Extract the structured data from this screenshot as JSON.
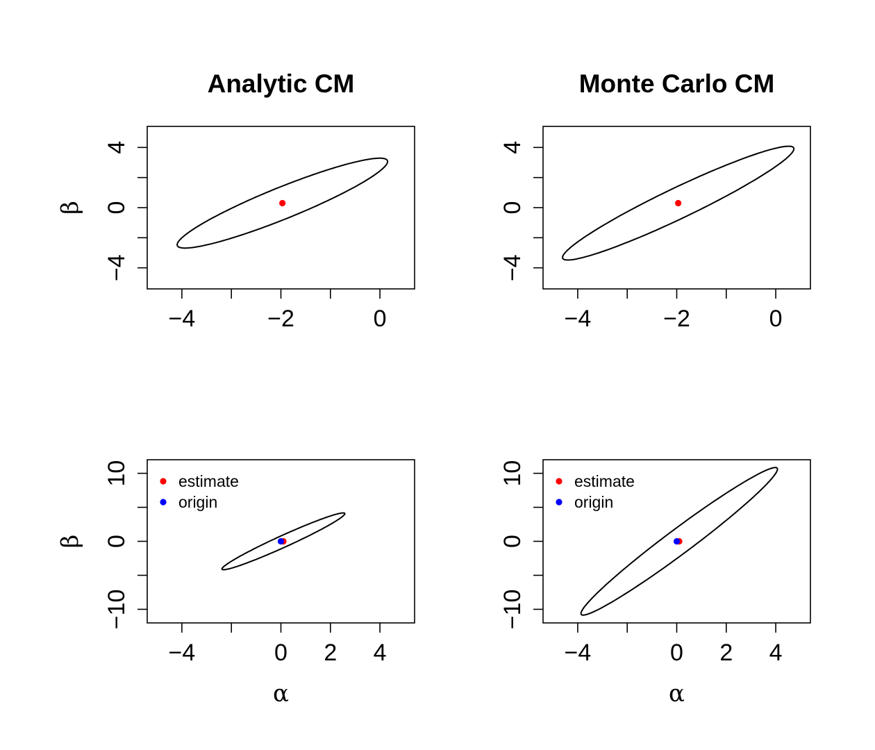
{
  "chart_data": [
    {
      "type": "scatter",
      "title": "Analytic CM",
      "xlabel": "",
      "ylabel": "β",
      "xlim": [
        -4.7,
        0.7
      ],
      "ylim": [
        -5.4,
        5.4
      ],
      "xticks": [
        -4,
        -3,
        -2,
        -1,
        0
      ],
      "xtick_labels": [
        "−4",
        "",
        "−2",
        "",
        "0"
      ],
      "yticks": [
        -4,
        -2,
        0,
        2,
        4
      ],
      "ytick_labels": [
        "−4",
        "",
        "0",
        "",
        "4"
      ],
      "ellipse": {
        "center": [
          -1.97,
          0.3
        ],
        "cov": [
          [
            1.2,
            1.56
          ],
          [
            1.56,
            2.37
          ]
        ],
        "scale": 1.94
      },
      "points": [
        {
          "x": -1.97,
          "y": 0.3,
          "color": "#ff0000"
        }
      ],
      "legend": null
    },
    {
      "type": "scatter",
      "title": "Monte Carlo CM",
      "xlabel": "",
      "ylabel": "",
      "xlim": [
        -4.7,
        0.7
      ],
      "ylim": [
        -5.4,
        5.4
      ],
      "xticks": [
        -4,
        -3,
        -2,
        -1,
        0
      ],
      "xtick_labels": [
        "−4",
        "",
        "−2",
        "",
        "0"
      ],
      "yticks": [
        -4,
        -2,
        0,
        2,
        4
      ],
      "ytick_labels": [
        "−4",
        "",
        "0",
        "",
        "4"
      ],
      "ellipse": {
        "center": [
          -1.97,
          0.3
        ],
        "cov": [
          [
            1.45,
            2.24
          ],
          [
            2.24,
            3.8
          ]
        ],
        "scale": 1.94
      },
      "points": [
        {
          "x": -1.97,
          "y": 0.3,
          "color": "#ff0000"
        }
      ],
      "legend": null
    },
    {
      "type": "scatter",
      "title": "",
      "xlabel": "α",
      "ylabel": "β",
      "xlim": [
        -5.4,
        5.4
      ],
      "ylim": [
        -12,
        12
      ],
      "xticks": [
        -4,
        -2,
        0,
        2,
        4
      ],
      "xtick_labels": [
        "−4",
        "",
        "0",
        "2",
        "4"
      ],
      "yticks": [
        -10,
        -5,
        0,
        5,
        10
      ],
      "ytick_labels": [
        "−10",
        "",
        "0",
        "",
        "10"
      ],
      "ellipse": {
        "center": [
          0.1,
          0.0
        ],
        "cov": [
          [
            1.8,
            2.95
          ],
          [
            2.95,
            5.1
          ]
        ],
        "scale": 1.85
      },
      "points": [
        {
          "x": 0.1,
          "y": 0.0,
          "color": "#ff0000"
        },
        {
          "x": 0.0,
          "y": 0.0,
          "color": "#0000ff"
        }
      ],
      "legend": {
        "position": "top-left",
        "entries": [
          {
            "label": "estimate",
            "color": "#ff0000"
          },
          {
            "label": "origin",
            "color": "#0000ff"
          }
        ]
      }
    },
    {
      "type": "scatter",
      "title": "",
      "xlabel": "α",
      "ylabel": "",
      "xlim": [
        -5.4,
        5.4
      ],
      "ylim": [
        -12,
        12
      ],
      "xticks": [
        -4,
        -2,
        0,
        2,
        4
      ],
      "xtick_labels": [
        "−4",
        "",
        "0",
        "2",
        "4"
      ],
      "yticks": [
        -10,
        -5,
        0,
        5,
        10
      ],
      "ytick_labels": [
        "−10",
        "",
        "0",
        "",
        "10"
      ],
      "ellipse": {
        "center": [
          0.1,
          0.0
        ],
        "cov": [
          [
            4.6,
            12.3
          ],
          [
            12.3,
            34.4
          ]
        ],
        "scale": 1.85
      },
      "points": [
        {
          "x": 0.1,
          "y": 0.0,
          "color": "#ff0000"
        },
        {
          "x": 0.0,
          "y": 0.0,
          "color": "#0000ff"
        }
      ],
      "legend": {
        "position": "top-left",
        "entries": [
          {
            "label": "estimate",
            "color": "#ff0000"
          },
          {
            "label": "origin",
            "color": "#0000ff"
          }
        ]
      }
    }
  ]
}
